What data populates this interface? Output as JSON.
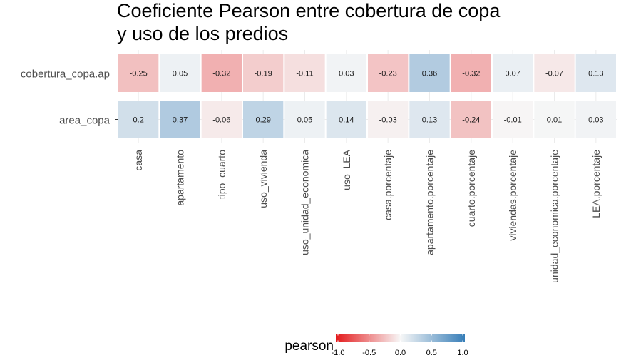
{
  "chart_data": {
    "type": "heatmap",
    "title": "Coeficiente Pearson entre cobertura de copa y uso de los predios",
    "title_lines": [
      "Coeficiente Pearson entre cobertura de copa",
      "y uso de los predios"
    ],
    "x_categories": [
      "casa",
      "apartamento",
      "tipo_cuarto",
      "uso_vivienda",
      "uso_unidad_economica",
      "uso_LEA",
      "casa.porcentaje",
      "apartamento.porcentaje",
      "cuarto.porcentaje",
      "viviendas.porcentaje",
      "unidad_economica.porcentaje",
      "LEA.porcentaje"
    ],
    "y_categories": [
      "cobertura_copa.ap",
      "area_copa"
    ],
    "values": [
      [
        -0.25,
        0.05,
        -0.32,
        -0.19,
        -0.11,
        0.03,
        -0.23,
        0.36,
        -0.32,
        0.07,
        -0.07,
        0.13
      ],
      [
        0.2,
        0.37,
        -0.06,
        0.29,
        0.05,
        0.14,
        -0.03,
        0.13,
        -0.24,
        -0.01,
        0.01,
        0.03
      ]
    ],
    "value_labels": [
      [
        "-0.25",
        "0.05",
        "-0.32",
        "-0.19",
        "-0.11",
        "0.03",
        "-0.23",
        "0.36",
        "-0.32",
        "0.07",
        "-0.07",
        "0.13"
      ],
      [
        "0.2",
        "0.37",
        "-0.06",
        "0.29",
        "0.05",
        "0.14",
        "-0.03",
        "0.13",
        "-0.24",
        "-0.01",
        "0.01",
        "0.03"
      ]
    ],
    "legend": {
      "title": "pearson",
      "ticks": [
        -1.0,
        -0.5,
        0.0,
        0.5,
        1.0
      ],
      "tick_labels": [
        "-1.0",
        "-0.5",
        "0.0",
        "0.5",
        "1.0"
      ],
      "limits": [
        -1,
        1
      ],
      "low_color": "#e41a1c",
      "mid_color": "#f7f7f7",
      "high_color": "#377eb8",
      "position": "bottom"
    },
    "grid": true,
    "background": "#ffffff",
    "gridline_color": "#ebebeb"
  }
}
